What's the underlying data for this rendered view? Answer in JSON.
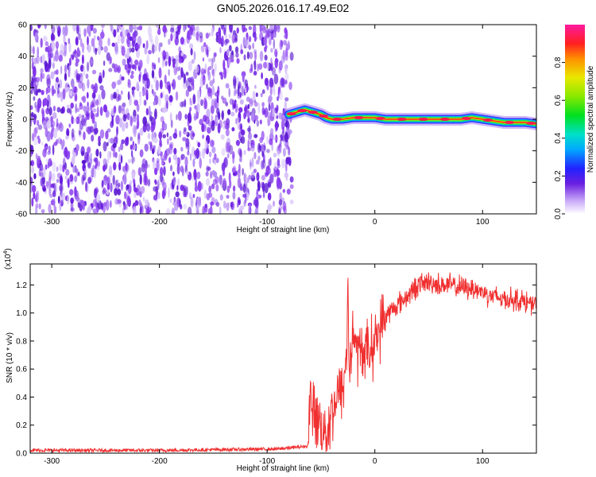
{
  "title": "GN05.2026.016.17.49.E02",
  "chart_data": [
    {
      "type": "heatmap",
      "xlabel": "Height of straight line (km)",
      "ylabel": "Frequency (Hz)",
      "xlim": [
        -320,
        150
      ],
      "ylim": [
        -60,
        60
      ],
      "x_ticks": [
        -300,
        -200,
        -100,
        0,
        100
      ],
      "y_ticks": [
        -60,
        -40,
        -20,
        0,
        20,
        40,
        60
      ],
      "noise_region_x": [
        -320,
        -77
      ],
      "ridge": {
        "x": [
          -80,
          -75,
          -70,
          -65,
          -60,
          -55,
          -50,
          -45,
          -40,
          -30,
          -20,
          -10,
          0,
          10,
          20,
          30,
          40,
          50,
          60,
          70,
          80,
          90,
          100,
          110,
          120,
          130,
          140,
          150
        ],
        "frequency": [
          3,
          4,
          5,
          6,
          5,
          4,
          3,
          1,
          0,
          0,
          1,
          1,
          1,
          0,
          0,
          0,
          0,
          0,
          0,
          0,
          0,
          1,
          0,
          -1,
          -2,
          -2,
          -2,
          -3
        ]
      },
      "colorbar": {
        "label": "Normalized spectral amplitude",
        "range": [
          0.0,
          1.0
        ],
        "ticks": [
          "0.0",
          "0.2",
          "0.4",
          "0.6",
          "0.8"
        ]
      }
    },
    {
      "type": "line",
      "xlabel": "Height of straight line (km)",
      "ylabel": "SNR (10 * v/v)",
      "multiplier": "(x10",
      "multiplier_exp": "4",
      "multiplier_close": ")",
      "xlim": [
        -320,
        150
      ],
      "ylim": [
        0,
        1.35
      ],
      "x_ticks": [
        -300,
        -200,
        -100,
        0,
        100
      ],
      "y_ticks": [
        "0.0",
        "0.2",
        "0.4",
        "0.6",
        "0.8",
        "1.0",
        "1.2"
      ],
      "color": "#f03030",
      "series": [
        {
          "x": [
            -320,
            -200,
            -90,
            -62,
            -60,
            -58,
            -55,
            -50,
            -45,
            -40,
            -35,
            -30,
            -26,
            -25,
            -24,
            -20,
            -15,
            -10,
            -5,
            0,
            5,
            10,
            20,
            30,
            40,
            50,
            60,
            70,
            80,
            90,
            100,
            110,
            120,
            130,
            140,
            150
          ],
          "y": [
            0.02,
            0.02,
            0.03,
            0.05,
            0.45,
            0.25,
            0.3,
            0.2,
            0.15,
            0.3,
            0.4,
            0.45,
            0.7,
            1.3,
            0.6,
            0.85,
            0.7,
            0.75,
            0.72,
            0.8,
            0.9,
            0.98,
            1.05,
            1.12,
            1.2,
            1.22,
            1.2,
            1.2,
            1.18,
            1.18,
            1.15,
            1.12,
            1.1,
            1.1,
            1.08,
            1.05
          ]
        }
      ]
    }
  ]
}
